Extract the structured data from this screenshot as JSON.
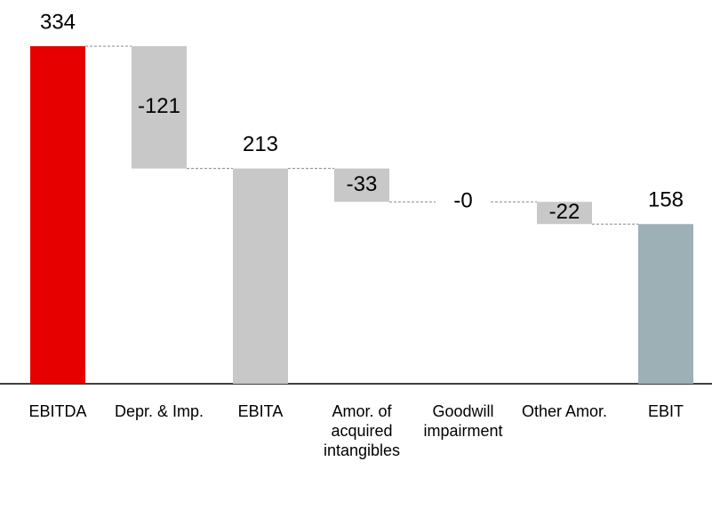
{
  "chart_data": {
    "type": "waterfall",
    "categories": [
      "EBITDA",
      "Depr. & Imp.",
      "EBITA",
      "Amor. of acquired intangibles",
      "Goodwill impairment",
      "Other Amor.",
      "EBIT"
    ],
    "values": [
      334,
      -121,
      213,
      -33,
      0,
      -22,
      158
    ],
    "value_labels": [
      "334",
      "-121",
      "213",
      "-33",
      "-0",
      "-22",
      "158"
    ],
    "totals": [
      true,
      false,
      true,
      false,
      false,
      false,
      true
    ],
    "colors": [
      "#e60000",
      "#c8c8c8",
      "#c8c8c8",
      "#c8c8c8",
      "#c8c8c8",
      "#c8c8c8",
      "#9cb0b6"
    ]
  }
}
